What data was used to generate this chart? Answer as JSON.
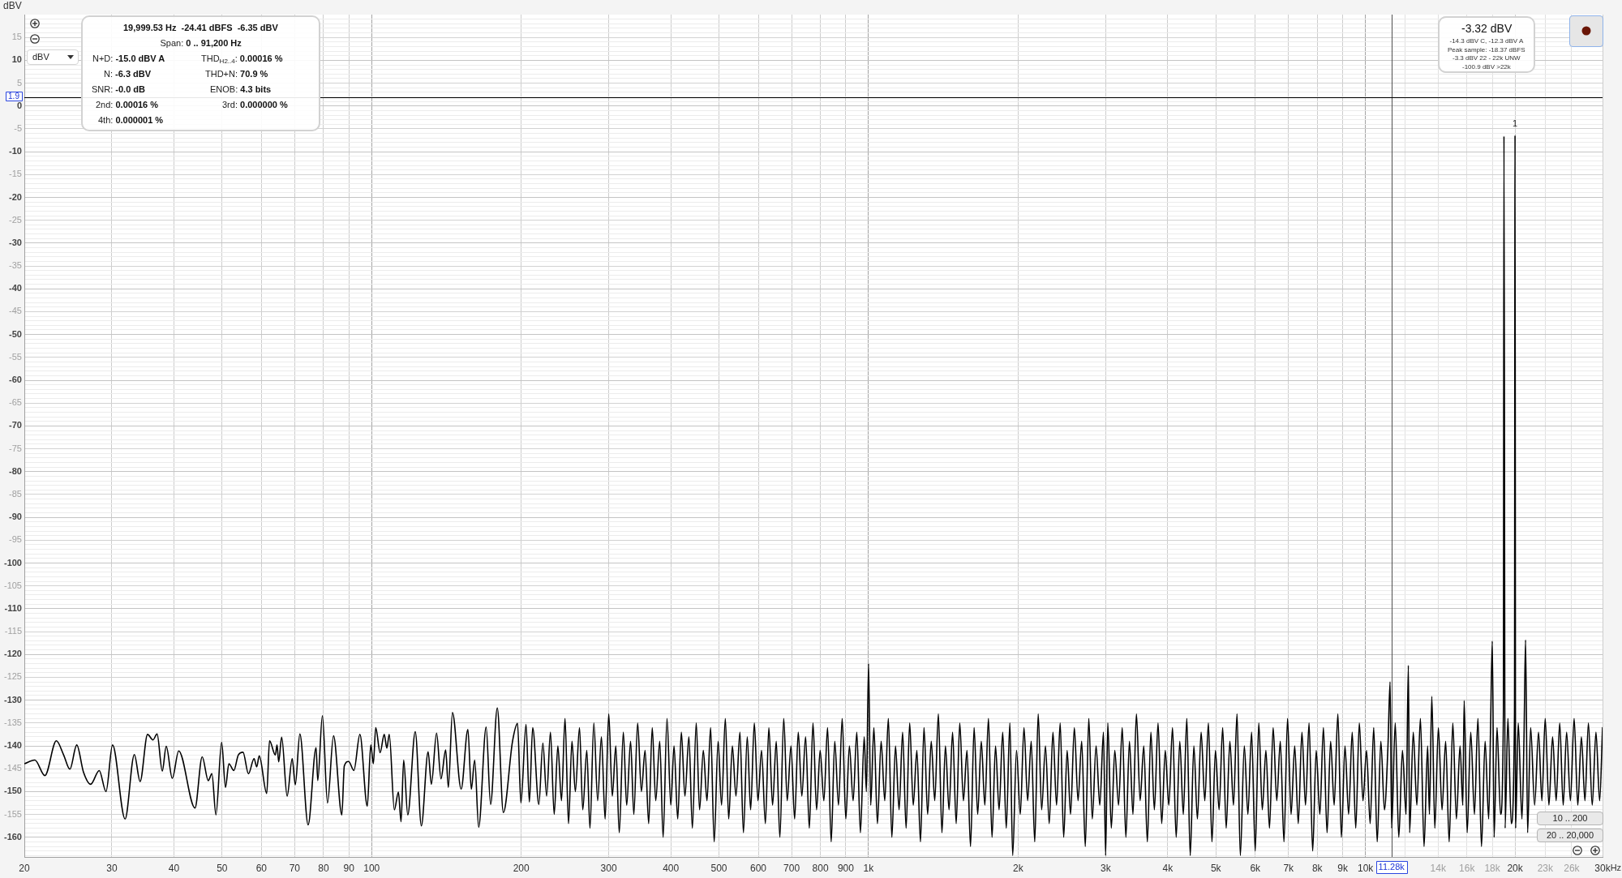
{
  "chart_data": {
    "type": "line",
    "ylabel": "dBV",
    "xlabel": "Hz",
    "color": "#000000",
    "x": [
      20,
      21,
      22,
      23.2,
      24,
      24.7,
      25.5,
      26.3,
      27.2,
      28.3,
      29.2,
      30.1,
      31.9,
      33.3,
      34.2,
      35.4,
      36.3,
      37,
      37.9,
      38.6,
      39.7,
      40.9,
      44.1,
      45.6,
      46.9,
      47.7,
      48.6,
      49.9,
      50.8,
      51.6,
      52.8,
      53.9,
      55.1,
      56.5,
      58,
      58.7,
      59.4,
      61.5,
      62.3,
      64,
      64.5,
      65,
      65.9,
      67.6,
      69.2,
      70.2,
      71.7,
      74.5,
      77.3,
      77.9,
      79.6,
      81.5,
      83.8,
      87.1,
      88.1,
      89.9,
      92.1,
      94.7,
      98,
      99.6,
      100.8,
      101.9,
      104,
      106,
      107.3,
      108.5,
      111.1,
      113.2,
      114.6,
      116,
      118.2,
      122.4,
      125.9,
      129.9,
      131.9,
      135.1,
      137.9,
      140.9,
      142.7,
      145.4,
      151.4,
      156.2,
      158.7,
      161.2,
      164.2,
      170,
      173.5,
      179,
      184.1,
      192.1,
      196.6,
      199.7,
      204.5,
      207.7,
      210.9,
      217,
      221.1,
      225,
      229,
      233,
      237,
      241,
      245,
      249,
      253,
      257,
      262,
      266,
      271,
      275,
      280,
      285,
      290,
      295,
      300,
      305,
      310,
      315,
      321,
      326,
      332,
      337,
      343,
      349,
      355,
      361,
      367,
      373,
      380,
      386,
      393,
      400,
      406,
      413,
      420,
      427,
      435,
      442,
      450,
      457,
      465,
      473,
      481,
      489,
      498,
      506,
      515,
      523,
      532,
      541,
      551,
      560,
      570,
      579,
      589,
      599,
      609,
      620,
      630,
      641,
      652,
      663,
      675,
      686,
      698,
      710,
      722,
      734,
      747,
      760,
      773,
      786,
      799,
      813,
      827,
      841,
      855,
      870,
      885,
      900,
      915,
      931,
      947,
      963,
      980,
      990,
      1000,
      1010,
      1025,
      1042,
      1060,
      1078,
      1096,
      1114,
      1133,
      1152,
      1171,
      1190,
      1210,
      1230,
      1251,
      1272,
      1293,
      1315,
      1337,
      1359,
      1382,
      1405,
      1428,
      1452,
      1476,
      1501,
      1526,
      1552,
      1578,
      1604,
      1631,
      1658,
      1686,
      1714,
      1743,
      1772,
      1801,
      1831,
      1862,
      1893,
      1925,
      1950,
      1985,
      2020,
      2055,
      2090,
      2125,
      2160,
      2195,
      2230,
      2270,
      2310,
      2350,
      2390,
      2430,
      2470,
      2510,
      2550,
      2595,
      2640,
      2685,
      2730,
      2775,
      2820,
      2870,
      2920,
      2970,
      3000,
      3030,
      3080,
      3130,
      3185,
      3240,
      3295,
      3350,
      3405,
      3460,
      3520,
      3580,
      3640,
      3700,
      3760,
      3825,
      3890,
      3955,
      4020,
      4090,
      4160,
      4230,
      4300,
      4370,
      4440,
      4515,
      4590,
      4670,
      4750,
      4830,
      4910,
      4990,
      5075,
      5160,
      5245,
      5335,
      5425,
      5515,
      5600,
      5705,
      5800,
      5900,
      6000,
      6100,
      6200,
      6305,
      6410,
      6520,
      6630,
      6740,
      6855,
      6970,
      7085,
      7205,
      7325,
      7450,
      7575,
      7700,
      7830,
      7960,
      8095,
      8230,
      8370,
      8510,
      8650,
      8800,
      8945,
      9095,
      9250,
      9405,
      9560,
      9720,
      9885,
      10050,
      10220,
      10390,
      10560,
      10740,
      10920,
      11100,
      11210,
      11290,
      11480,
      11670,
      11870,
      12070,
      12200,
      12270,
      12480,
      12690,
      12900,
      13120,
      13340,
      13450,
      13600,
      13790,
      14020,
      14260,
      14500,
      14740,
      14990,
      15240,
      15500,
      15700,
      15800,
      16020,
      16290,
      16570,
      16840,
      17120,
      17410,
      17700,
      17850,
      18000,
      18150,
      18400,
      18700,
      18950,
      19000,
      19100,
      19350,
      19650,
      19950,
      20000,
      20050,
      20300,
      20650,
      20850,
      21000,
      21200,
      21500,
      21900,
      22300,
      22650,
      23000,
      23400,
      23800,
      24200,
      24600,
      25000,
      25400,
      25850,
      26300,
      26750,
      27200,
      27650,
      28100,
      28600,
      29100,
      29600,
      30000
    ],
    "values": [
      -143.9,
      -143.1,
      -146.5,
      -138.9,
      -142,
      -145.1,
      -139.8,
      -145.7,
      -148.4,
      -145.4,
      -150,
      -139.8,
      -156,
      -141.9,
      -147.8,
      -137.5,
      -138.7,
      -137.4,
      -145.5,
      -140.1,
      -147.1,
      -141.1,
      -153.6,
      -142.4,
      -147.6,
      -146.1,
      -155.1,
      -139.2,
      -149.1,
      -143.9,
      -145.4,
      -142,
      -141.4,
      -146.1,
      -142.8,
      -144.6,
      -142.2,
      -150.4,
      -138.9,
      -142,
      -139.8,
      -143.5,
      -138.1,
      -151,
      -142.8,
      -148.5,
      -137.4,
      -157.3,
      -140.4,
      -147.6,
      -133.4,
      -152.5,
      -137.8,
      -155.1,
      -144.4,
      -143.4,
      -145.4,
      -137.5,
      -153.2,
      -139.8,
      -143.9,
      -136,
      -141.5,
      -137.5,
      -140.5,
      -137.5,
      -154,
      -150.1,
      -156.6,
      -143.1,
      -155.1,
      -136.9,
      -157.5,
      -141.3,
      -148.4,
      -137.2,
      -147.2,
      -140.9,
      -149.1,
      -132.7,
      -149.5,
      -136.4,
      -149.5,
      -143.1,
      -157.8,
      -135.9,
      -152.8,
      -131.7,
      -154.6,
      -139,
      -135.1,
      -152.5,
      -135.3,
      -152.3,
      -136,
      -152.8,
      -139.4,
      -151,
      -137,
      -155,
      -140,
      -152,
      -134,
      -157,
      -139,
      -150,
      -136,
      -154,
      -141,
      -158,
      -135,
      -152,
      -138,
      -156,
      -133,
      -151,
      -140,
      -159,
      -137,
      -153,
      -139,
      -155,
      -135,
      -150,
      -141,
      -157,
      -136,
      -152,
      -139,
      -160,
      -134,
      -153,
      -140,
      -156,
      -137,
      -151,
      -138,
      -158,
      -135,
      -154,
      -141,
      -152,
      -136,
      -161,
      -139,
      -153,
      -134,
      -156,
      -140,
      -151,
      -137,
      -159,
      -138,
      -154,
      -135,
      -152,
      -141,
      -157,
      -136,
      -153,
      -139,
      -160,
      -134,
      -152,
      -140,
      -156,
      -137,
      -151,
      -138,
      -158,
      -135,
      -154,
      -141,
      -152,
      -136,
      -161,
      -139,
      -153,
      -134,
      -156,
      -140,
      -152,
      -137,
      -159,
      -138,
      -150,
      -122,
      -153,
      -136,
      -157,
      -139,
      -152,
      -134,
      -160,
      -140,
      -154,
      -137,
      -158,
      -135,
      -153,
      -141,
      -161,
      -136,
      -155,
      -139,
      -152,
      -133,
      -159,
      -140,
      -154,
      -137,
      -157,
      -135,
      -152,
      -141,
      -162,
      -136,
      -155,
      -139,
      -153,
      -134,
      -160,
      -140,
      -154,
      -137,
      -158,
      -135,
      -164,
      -141,
      -155,
      -136,
      -152,
      -139,
      -161,
      -133,
      -154,
      -140,
      -157,
      -137,
      -153,
      -135,
      -160,
      -141,
      -155,
      -136,
      -152,
      -139,
      -162,
      -134,
      -156,
      -140,
      -153,
      -137,
      -164,
      -135,
      -158,
      -141,
      -153,
      -136,
      -160,
      -139,
      -155,
      -133,
      -152,
      -140,
      -161,
      -137,
      -154,
      -135,
      -157,
      -141,
      -153,
      -136,
      -160,
      -139,
      -155,
      -134,
      -164,
      -140,
      -156,
      -137,
      -152,
      -135,
      -161,
      -141,
      -154,
      -136,
      -158,
      -139,
      -153,
      -133,
      -164,
      -140,
      -155,
      -137,
      -163,
      -135,
      -154,
      -141,
      -158,
      -136,
      -152,
      -139,
      -161,
      -134,
      -155,
      -140,
      -157,
      -137,
      -153,
      -135,
      -163,
      -141,
      -155,
      -136,
      -159,
      -139,
      -153,
      -133,
      -160,
      -140,
      -155,
      -137,
      -158,
      -135,
      -152,
      -141,
      -157,
      -136,
      -161,
      -139,
      -154,
      -140,
      -126,
      -158,
      -135,
      -160,
      -141,
      -155,
      -122.4,
      -159,
      -137,
      -153,
      -134,
      -162,
      -140,
      -155,
      -129.2,
      -158,
      -136,
      -154,
      -139,
      -161,
      -135,
      -156,
      -140,
      -153,
      -130.1,
      -159,
      -137,
      -155,
      -134,
      -162,
      -139,
      -156,
      -137,
      -117.1,
      -160,
      -136,
      -155,
      -133,
      -6.6,
      -158,
      -134,
      -157,
      -133,
      -6.4,
      -158,
      -135,
      -156,
      -138,
      -116.8,
      -159,
      -136,
      -153,
      -137,
      -152,
      -134,
      -153,
      -138,
      -152,
      -135,
      -153,
      -137,
      -152,
      -134,
      -153,
      -138,
      -152,
      -135,
      -153,
      -137,
      -152,
      -136
    ],
    "log": "x",
    "xlim": [
      20,
      30000
    ],
    "ylim": [
      -164.3,
      20
    ],
    "xticks": [
      20,
      30,
      40,
      50,
      60,
      70,
      80,
      90,
      100,
      200,
      300,
      400,
      500,
      600,
      700,
      800,
      900,
      {
        "value": 1000,
        "label": "1k"
      },
      {
        "value": 2000,
        "label": "2k"
      },
      {
        "value": 3000,
        "label": "3k"
      },
      {
        "value": 4000,
        "label": "4k"
      },
      {
        "value": 5000,
        "label": "5k"
      },
      {
        "value": 6000,
        "label": "6k"
      },
      {
        "value": 7000,
        "label": "7k"
      },
      {
        "value": 8000,
        "label": "8k"
      },
      {
        "value": 9000,
        "label": "9k"
      },
      {
        "value": 10000,
        "label": "10k"
      },
      {
        "value": 12000,
        "label": null
      },
      {
        "value": 14000,
        "label": "14k"
      },
      {
        "value": 16000,
        "label": "16k"
      },
      {
        "value": 18000,
        "label": "18k"
      },
      {
        "value": 20000,
        "label": "20k"
      },
      {
        "value": 23000,
        "label": "23k"
      },
      {
        "value": 26000,
        "label": "26k"
      },
      {
        "value": 30000,
        "label": "30k"
      }
    ],
    "yticks": [
      {
        "value": -164,
        "label": null
      },
      {
        "value": -163,
        "label": null
      },
      {
        "value": -162,
        "label": null
      },
      {
        "value": -161,
        "label": null
      },
      -160,
      {
        "value": -159,
        "label": null
      },
      {
        "value": -158,
        "label": null
      },
      {
        "value": -157,
        "label": null
      },
      {
        "value": -156,
        "label": null
      },
      -155,
      {
        "value": -154,
        "label": null
      },
      {
        "value": -153,
        "label": null
      },
      {
        "value": -152,
        "label": null
      },
      {
        "value": -151,
        "label": null
      },
      -150,
      {
        "value": -149,
        "label": null
      },
      {
        "value": -148,
        "label": null
      },
      {
        "value": -147,
        "label": null
      },
      {
        "value": -146,
        "label": null
      },
      -145,
      {
        "value": -144,
        "label": null
      },
      {
        "value": -143,
        "label": null
      },
      {
        "value": -142,
        "label": null
      },
      {
        "value": -141,
        "label": null
      },
      -140,
      {
        "value": -139,
        "label": null
      },
      {
        "value": -138,
        "label": null
      },
      {
        "value": -137,
        "label": null
      },
      {
        "value": -136,
        "label": null
      },
      -135,
      {
        "value": -134,
        "label": null
      },
      {
        "value": -133,
        "label": null
      },
      {
        "value": -132,
        "label": null
      },
      {
        "value": -131,
        "label": null
      },
      -130,
      {
        "value": -129,
        "label": null
      },
      {
        "value": -128,
        "label": null
      },
      {
        "value": -127,
        "label": null
      },
      {
        "value": -126,
        "label": null
      },
      -125,
      {
        "value": -124,
        "label": null
      },
      {
        "value": -123,
        "label": null
      },
      {
        "value": -122,
        "label": null
      },
      {
        "value": -121,
        "label": null
      },
      -120,
      {
        "value": -119,
        "label": null
      },
      {
        "value": -118,
        "label": null
      },
      {
        "value": -117,
        "label": null
      },
      {
        "value": -116,
        "label": null
      },
      -115,
      {
        "value": -114,
        "label": null
      },
      {
        "value": -113,
        "label": null
      },
      {
        "value": -112,
        "label": null
      },
      {
        "value": -111,
        "label": null
      },
      -110,
      {
        "value": -109,
        "label": null
      },
      {
        "value": -108,
        "label": null
      },
      {
        "value": -107,
        "label": null
      },
      {
        "value": -106,
        "label": null
      },
      -105,
      {
        "value": -104,
        "label": null
      },
      {
        "value": -103,
        "label": null
      },
      {
        "value": -102,
        "label": null
      },
      {
        "value": -101,
        "label": null
      },
      -100,
      {
        "value": -99,
        "label": null
      },
      {
        "value": -98,
        "label": null
      },
      {
        "value": -97,
        "label": null
      },
      {
        "value": -96,
        "label": null
      },
      -95,
      {
        "value": -94,
        "label": null
      },
      {
        "value": -93,
        "label": null
      },
      {
        "value": -92,
        "label": null
      },
      {
        "value": -91,
        "label": null
      },
      -90,
      {
        "value": -89,
        "label": null
      },
      {
        "value": -88,
        "label": null
      },
      {
        "value": -87,
        "label": null
      },
      {
        "value": -86,
        "label": null
      },
      -85,
      {
        "value": -84,
        "label": null
      },
      {
        "value": -83,
        "label": null
      },
      {
        "value": -82,
        "label": null
      },
      {
        "value": -81,
        "label": null
      },
      -80,
      {
        "value": -79,
        "label": null
      },
      {
        "value": -78,
        "label": null
      },
      {
        "value": -77,
        "label": null
      },
      {
        "value": -76,
        "label": null
      },
      -75,
      {
        "value": -74,
        "label": null
      },
      {
        "value": -73,
        "label": null
      },
      {
        "value": -72,
        "label": null
      },
      {
        "value": -71,
        "label": null
      },
      -70,
      {
        "value": -69,
        "label": null
      },
      {
        "value": -68,
        "label": null
      },
      {
        "value": -67,
        "label": null
      },
      {
        "value": -66,
        "label": null
      },
      -65,
      {
        "value": -64,
        "label": null
      },
      {
        "value": -63,
        "label": null
      },
      {
        "value": -62,
        "label": null
      },
      {
        "value": -61,
        "label": null
      },
      -60,
      {
        "value": -59,
        "label": null
      },
      {
        "value": -58,
        "label": null
      },
      {
        "value": -57,
        "label": null
      },
      {
        "value": -56,
        "label": null
      },
      -55,
      {
        "value": -54,
        "label": null
      },
      {
        "value": -53,
        "label": null
      },
      {
        "value": -52,
        "label": null
      },
      {
        "value": -51,
        "label": null
      },
      -50,
      {
        "value": -49,
        "label": null
      },
      {
        "value": -48,
        "label": null
      },
      {
        "value": -47,
        "label": null
      },
      {
        "value": -46,
        "label": null
      },
      -45,
      {
        "value": -44,
        "label": null
      },
      {
        "value": -43,
        "label": null
      },
      {
        "value": -42,
        "label": null
      },
      {
        "value": -41,
        "label": null
      },
      -40,
      {
        "value": -39,
        "label": null
      },
      {
        "value": -38,
        "label": null
      },
      {
        "value": -37,
        "label": null
      },
      {
        "value": -36,
        "label": null
      },
      -35,
      {
        "value": -34,
        "label": null
      },
      {
        "value": -33,
        "label": null
      },
      {
        "value": -32,
        "label": null
      },
      {
        "value": -31,
        "label": null
      },
      -30,
      {
        "value": -29,
        "label": null
      },
      {
        "value": -28,
        "label": null
      },
      {
        "value": -27,
        "label": null
      },
      {
        "value": -26,
        "label": null
      },
      -25,
      {
        "value": -24,
        "label": null
      },
      {
        "value": -23,
        "label": null
      },
      {
        "value": -22,
        "label": null
      },
      {
        "value": -21,
        "label": null
      },
      -20,
      {
        "value": -19,
        "label": null
      },
      {
        "value": -18,
        "label": null
      },
      {
        "value": -17,
        "label": null
      },
      {
        "value": -16,
        "label": null
      },
      -15,
      {
        "value": -14,
        "label": null
      },
      {
        "value": -13,
        "label": null
      },
      {
        "value": -12,
        "label": null
      },
      {
        "value": -11,
        "label": null
      },
      -10,
      {
        "value": -9,
        "label": null
      },
      {
        "value": -8,
        "label": null
      },
      {
        "value": -7,
        "label": null
      },
      {
        "value": -6,
        "label": null
      },
      -5,
      {
        "value": -4,
        "label": null
      },
      {
        "value": -3,
        "label": null
      },
      {
        "value": -2,
        "label": null
      },
      {
        "value": -1,
        "label": null
      },
      0,
      {
        "value": 1,
        "label": null
      },
      {
        "value": 2,
        "label": null
      },
      {
        "value": 3,
        "label": null
      },
      {
        "value": 4,
        "label": null
      },
      5,
      {
        "value": 6,
        "label": null
      },
      {
        "value": 7,
        "label": null
      },
      {
        "value": 8,
        "label": null
      },
      {
        "value": 9,
        "label": null
      },
      10,
      {
        "value": 11,
        "label": null
      },
      {
        "value": 12,
        "label": null
      },
      {
        "value": 13,
        "label": null
      },
      {
        "value": 14,
        "label": null
      },
      15,
      {
        "value": 16,
        "label": null
      },
      {
        "value": 17,
        "label": null
      },
      {
        "value": 18,
        "label": null
      },
      {
        "value": 19,
        "label": null
      }
    ],
    "grid": true,
    "ref_lines": [
      {
        "axis": "x",
        "value": 11280,
        "label": "11.28k",
        "color": "#505050"
      },
      {
        "axis": "y",
        "value": 1.9,
        "label": "1.9",
        "color": "#000000"
      }
    ],
    "annotations": [
      "19,999.53 Hz  -24.41 dBFS  -6.35 dBV",
      "Span: 0 .. 91,200 Hz",
      "N+D: -15.0 dBV A",
      "THD$_{H2..4}$: 0.00016 %",
      "N: -6.3 dBV",
      "THD+N: 70.9 %",
      "SNR: -0.0 dB",
      "ENOB: 4.3 bits",
      "2nd: 0.00016 %",
      "3rd: 0.000000 %",
      "4th: 0.000001 %",
      "-3.32 dBV",
      "-14.3 dBV C, -12.3 dBV A",
      "Peak sample: -18.37 dBFS",
      "-3.3 dBV 22 - 22k UNW",
      "-100.9 dBV >22k",
      "dBV",
      "10 .. 200",
      "20 .. 20,000",
      {
        "text": "1",
        "x": 20000,
        "y": -6.4
      }
    ]
  }
}
